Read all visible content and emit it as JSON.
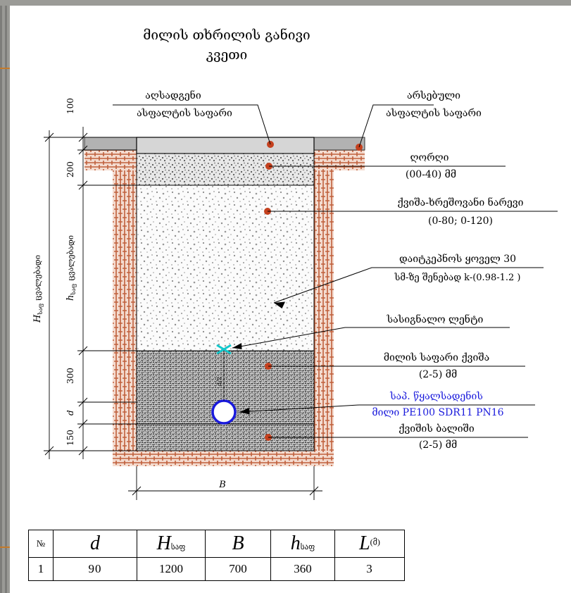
{
  "title": {
    "line1": "მილის თხრილის განივი",
    "line2": "კვეთი"
  },
  "dimensions": {
    "d100": "100",
    "d200": "200",
    "d300": "300",
    "d150": "150",
    "d_small": "d",
    "h_label": "h",
    "h_sub": "საფ",
    "h_text": "ცვალებადი",
    "H_label": "H",
    "H_sub": "საფ",
    "H_text": "ცვალებადი",
    "B_label": "B",
    "pipe_depth": "d/2"
  },
  "labels": {
    "asphalt_restore": {
      "line1": "აღსადგენი",
      "line2": "ასფალტის საფარი"
    },
    "asphalt_existing": {
      "line1": "არსებული",
      "line2": "ასფალტის საფარი"
    },
    "gravel": {
      "line1": "ღორღი",
      "line2": "(00-40) მმ"
    },
    "sand_gravel": {
      "line1": "ქვიშა-ხრეშოვანი ნარევი",
      "line2": "(0-80; 0-120)"
    },
    "compaction": {
      "line1": "დაიტკეპნოს ყოველ 30",
      "line2": "სმ-ზე შენებად k-(0.98-1.2 )"
    },
    "signal_tape": {
      "line1": "სასიგნალო ლენტი"
    },
    "pipe_bed": {
      "line1": "მილის საფარი ქვიშა",
      "line2": "(2-5) მმ"
    },
    "pipe": {
      "line1": "საპ. წყალსადენის",
      "line2": "მილი PE100 SDR11 PN16"
    },
    "sand_bed": {
      "line1": "ქვიშის ბალიში",
      "line2": "(2-5) მმ"
    }
  },
  "table": {
    "headers": {
      "no": "№",
      "d": "d",
      "H": "H",
      "H_sub": "საფ",
      "B": "B",
      "h": "h",
      "h_sub": "საფ",
      "L": "L",
      "L_unit": "(მ)"
    },
    "row": {
      "no": "1",
      "d": "90",
      "H": "1200",
      "B": "700",
      "h": "360",
      "L": "3"
    }
  },
  "colors": {
    "brick": "#c0603c",
    "asphalt": "#b2b2b2",
    "marker": "#c4401e",
    "pipe": "#1a1adc",
    "tape": "#12c8cc"
  }
}
